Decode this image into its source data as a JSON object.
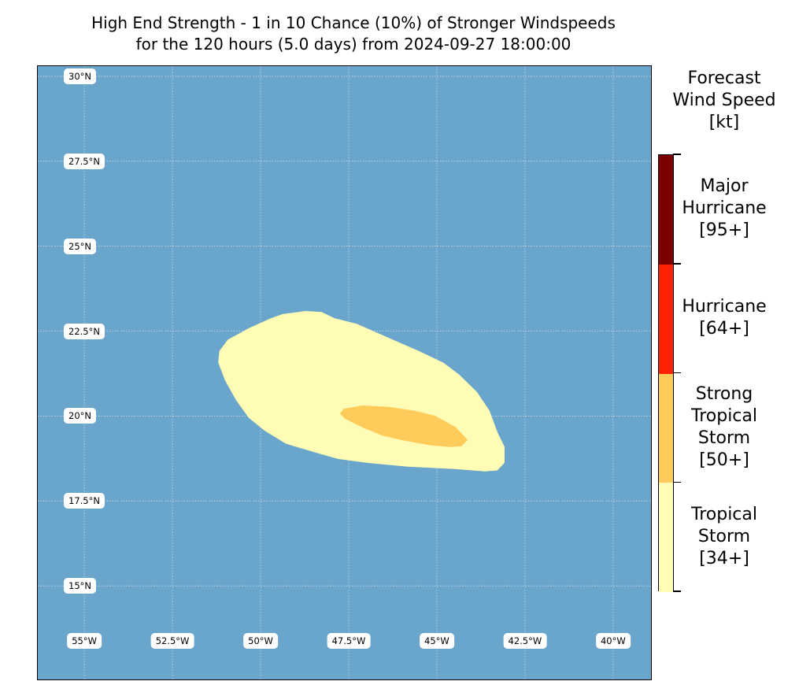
{
  "title": {
    "line1": "High End Strength - 1 in 10 Chance (10%) of Stronger Windspeeds",
    "line2": "for the 120 hours (5.0 days) from 2024-09-27 18:00:00"
  },
  "colors": {
    "ocean": "#6aa6cb",
    "tropical_storm": "#fffcb6",
    "strong_tropical_storm": "#ffcc5c",
    "hurricane": "#ff2200",
    "major_hurricane": "#7b0000"
  },
  "map": {
    "lat_labels": [
      "30°N",
      "27.5°N",
      "25°N",
      "22.5°N",
      "20°N",
      "17.5°N",
      "15°N"
    ],
    "lon_labels": [
      "55°W",
      "52.5°W",
      "50°W",
      "47.5°W",
      "45°W",
      "42.5°W",
      "40°W"
    ],
    "extent": {
      "lon_min": -56.32,
      "lon_max": -38.88,
      "lat_min": 12.2,
      "lat_max": 30.3
    },
    "wind_zones": [
      {
        "category": "Tropical Storm",
        "min_kt": 34,
        "outline_lonlat": [
          [
            -51.16,
            21.91
          ],
          [
            -50.92,
            22.24
          ],
          [
            -50.32,
            22.58
          ],
          [
            -49.72,
            22.86
          ],
          [
            -49.37,
            22.99
          ],
          [
            -48.72,
            23.08
          ],
          [
            -48.27,
            23.05
          ],
          [
            -47.91,
            22.87
          ],
          [
            -47.27,
            22.7
          ],
          [
            -46.39,
            22.3
          ],
          [
            -45.53,
            21.91
          ],
          [
            -44.82,
            21.56
          ],
          [
            -44.37,
            21.21
          ],
          [
            -43.87,
            20.7
          ],
          [
            -43.52,
            20.16
          ],
          [
            -43.28,
            19.49
          ],
          [
            -43.09,
            19.09
          ],
          [
            -43.09,
            18.63
          ],
          [
            -43.29,
            18.41
          ],
          [
            -43.64,
            18.38
          ],
          [
            -44.48,
            18.45
          ],
          [
            -45.82,
            18.52
          ],
          [
            -46.93,
            18.63
          ],
          [
            -47.8,
            18.75
          ],
          [
            -48.49,
            18.95
          ],
          [
            -49.28,
            19.2
          ],
          [
            -49.88,
            19.58
          ],
          [
            -50.33,
            19.96
          ],
          [
            -50.69,
            20.48
          ],
          [
            -51.0,
            21.06
          ],
          [
            -51.19,
            21.58
          ]
        ]
      },
      {
        "category": "Strong Tropical Storm",
        "min_kt": 50,
        "outline_lonlat": [
          [
            -47.64,
            20.2
          ],
          [
            -47.11,
            20.3
          ],
          [
            -46.37,
            20.26
          ],
          [
            -45.65,
            20.15
          ],
          [
            -45.06,
            20.0
          ],
          [
            -44.48,
            19.67
          ],
          [
            -44.14,
            19.3
          ],
          [
            -44.31,
            19.12
          ],
          [
            -44.62,
            19.1
          ],
          [
            -45.18,
            19.15
          ],
          [
            -45.88,
            19.28
          ],
          [
            -46.53,
            19.43
          ],
          [
            -47.12,
            19.68
          ],
          [
            -47.6,
            19.93
          ],
          [
            -47.73,
            20.07
          ]
        ]
      }
    ]
  },
  "colorbar": {
    "title_lines": [
      "Forecast",
      "Wind Speed",
      "[kt]"
    ],
    "categories": [
      {
        "name": "Major Hurricane",
        "lines": [
          "Major",
          "Hurricane",
          "[95+]"
        ],
        "color": "#7b0000"
      },
      {
        "name": "Hurricane",
        "lines": [
          "Hurricane",
          "[64+]"
        ],
        "color": "#ff2200"
      },
      {
        "name": "Strong Tropical Storm",
        "lines": [
          "Strong",
          "Tropical",
          "Storm",
          "[50+]"
        ],
        "color": "#ffcc5c"
      },
      {
        "name": "Tropical Storm",
        "lines": [
          "Tropical",
          "Storm",
          "[34+]"
        ],
        "color": "#fffcb6"
      }
    ]
  }
}
